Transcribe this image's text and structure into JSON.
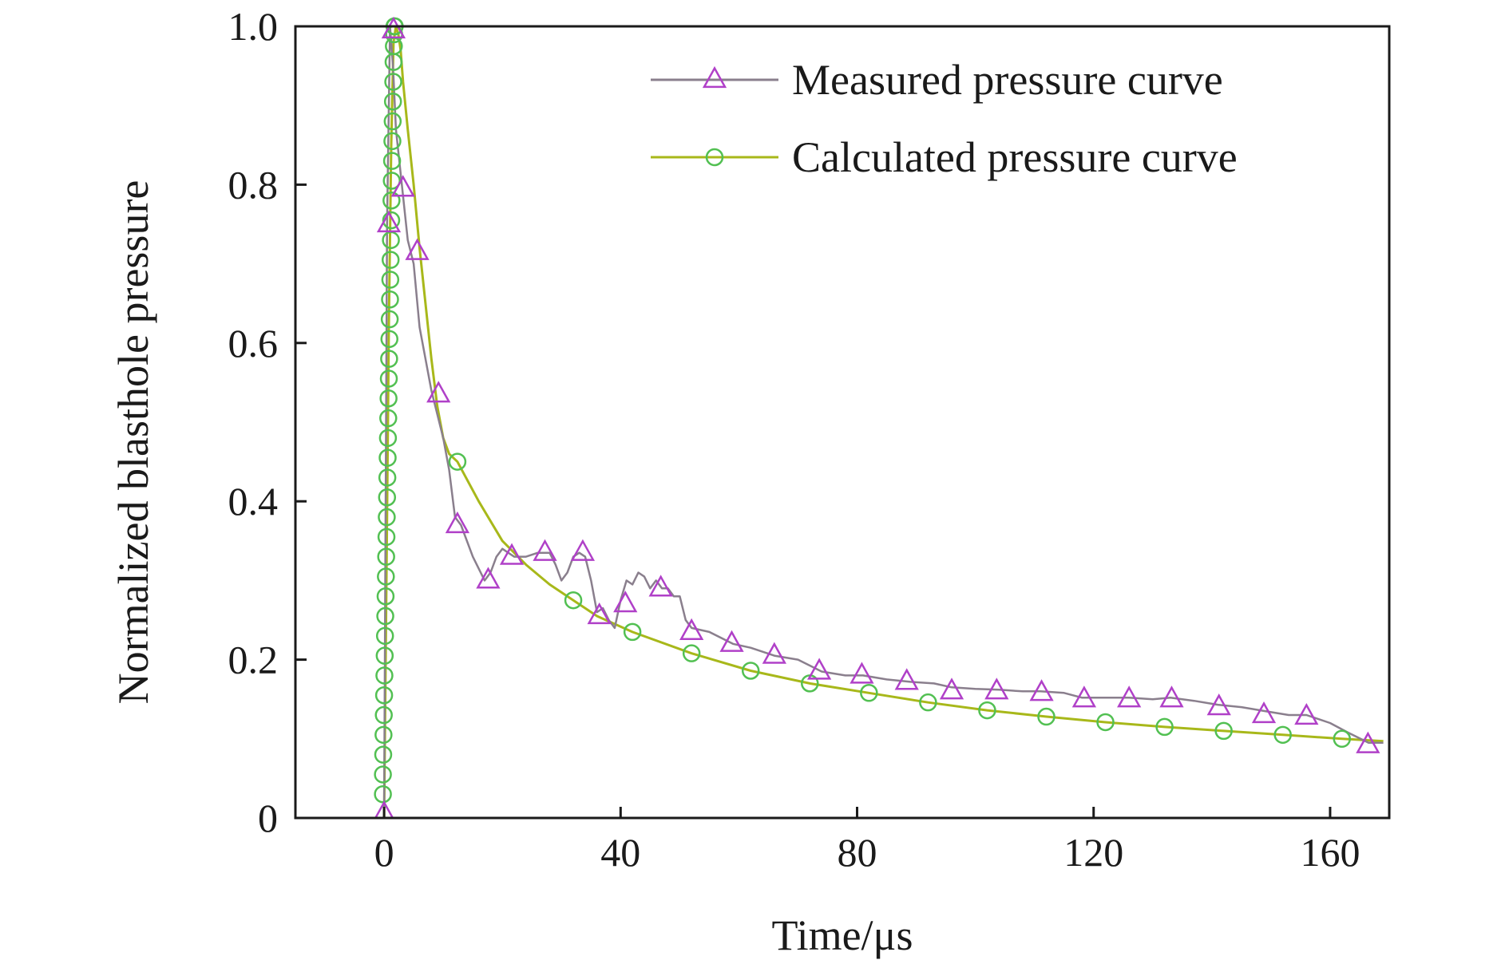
{
  "chart_data": {
    "type": "line",
    "title": "",
    "xlabel": "Time/μs",
    "ylabel": "Normalized blasthole pressure",
    "xlim": [
      -15,
      170
    ],
    "ylim": [
      0,
      1.0
    ],
    "x_ticks": [
      0,
      40,
      80,
      120,
      160
    ],
    "x_tick_labels": [
      "0",
      "40",
      "80",
      "120",
      "160"
    ],
    "y_ticks": [
      0,
      0.2,
      0.4,
      0.6,
      0.8,
      1.0
    ],
    "y_tick_labels": [
      "0",
      "0.2",
      "0.4",
      "0.6",
      "0.8",
      "1.0"
    ],
    "grid": false,
    "legend_position": "top-right",
    "series": [
      {
        "name": "Measured pressure curve",
        "line_color": "#8a7f8d",
        "marker": "triangle",
        "marker_color": "#b040c8",
        "x": [
          0,
          0.5,
          1.0,
          1.5,
          2.0,
          3.0,
          4.0,
          5.0,
          6.0,
          7.0,
          8.0,
          9.0,
          10.0,
          11.0,
          12.0,
          13.0,
          15.0,
          17.0,
          18.0,
          19.0,
          20.0,
          22.0,
          24.0,
          26.0,
          28.0,
          29.0,
          30.0,
          31.0,
          32.0,
          33.0,
          34.0,
          35.0,
          36.0,
          37.0,
          38.0,
          39.0,
          40.0,
          41.0,
          42.0,
          43.0,
          44.0,
          45.0,
          46.0,
          47.0,
          48.0,
          49.0,
          50.0,
          51.0,
          52.0,
          55.0,
          59.0,
          62.0,
          66.0,
          70.0,
          74.0,
          78.0,
          81.0,
          85.0,
          89.0,
          93.0,
          96.0,
          100.0,
          104.0,
          108.0,
          111.0,
          115.0,
          118.0,
          122.0,
          126.0,
          130.0,
          133.0,
          137.0,
          141.0,
          145.0,
          149.0,
          153.0,
          156.0,
          160.0,
          163.0,
          166.5,
          169.0
        ],
        "y": [
          0.01,
          0.75,
          1.0,
          0.95,
          0.87,
          0.8,
          0.73,
          0.7,
          0.62,
          0.58,
          0.54,
          0.51,
          0.48,
          0.44,
          0.38,
          0.37,
          0.33,
          0.3,
          0.31,
          0.33,
          0.34,
          0.33,
          0.33,
          0.335,
          0.335,
          0.32,
          0.3,
          0.31,
          0.33,
          0.335,
          0.33,
          0.3,
          0.26,
          0.265,
          0.25,
          0.24,
          0.275,
          0.3,
          0.295,
          0.31,
          0.305,
          0.29,
          0.3,
          0.29,
          0.29,
          0.28,
          0.28,
          0.25,
          0.24,
          0.235,
          0.22,
          0.215,
          0.205,
          0.2,
          0.185,
          0.18,
          0.18,
          0.175,
          0.172,
          0.17,
          0.165,
          0.163,
          0.162,
          0.16,
          0.16,
          0.158,
          0.152,
          0.152,
          0.152,
          0.15,
          0.152,
          0.148,
          0.143,
          0.14,
          0.135,
          0.13,
          0.13,
          0.12,
          0.108,
          0.095,
          0.095
        ],
        "marker_x": [
          0,
          0.8,
          1.6,
          3.2,
          5.6,
          9.2,
          12.4,
          17.6,
          21.6,
          27.2,
          33.6,
          36.4,
          40.8,
          46.8,
          52.0,
          58.8,
          66.0,
          73.6,
          80.8,
          88.4,
          96.0,
          103.6,
          111.2,
          118.4,
          126.0,
          133.2,
          141.2,
          148.8,
          156.0,
          166.4
        ],
        "marker_y": [
          0.005,
          0.75,
          0.995,
          0.795,
          0.715,
          0.535,
          0.37,
          0.3,
          0.33,
          0.335,
          0.335,
          0.255,
          0.27,
          0.29,
          0.235,
          0.22,
          0.205,
          0.185,
          0.18,
          0.172,
          0.16,
          0.16,
          0.158,
          0.15,
          0.15,
          0.15,
          0.14,
          0.13,
          0.128,
          0.092
        ]
      },
      {
        "name": "Calculated pressure curve",
        "line_color": "#a8b81a",
        "marker": "circle",
        "marker_color": "#52c052",
        "x": [
          0,
          0.4,
          0.8,
          1.2,
          1.6,
          2.0,
          2.4,
          2.8,
          3.2,
          4.0,
          5.0,
          6.0,
          7.0,
          8.0,
          9.0,
          10.0,
          11.0,
          12.4,
          16.0,
          20.0,
          24.0,
          28.0,
          32.0,
          36.0,
          42.0,
          52.0,
          62.0,
          72.0,
          82.0,
          92.0,
          102.0,
          112.0,
          122.0,
          132.0,
          142.0,
          152.0,
          162.0,
          169.0
        ],
        "y": [
          0.0,
          0.3,
          0.62,
          0.85,
          0.98,
          1.0,
          0.99,
          0.97,
          0.93,
          0.87,
          0.8,
          0.72,
          0.65,
          0.58,
          0.52,
          0.48,
          0.46,
          0.45,
          0.4,
          0.35,
          0.32,
          0.295,
          0.275,
          0.255,
          0.235,
          0.208,
          0.186,
          0.17,
          0.158,
          0.146,
          0.136,
          0.128,
          0.121,
          0.115,
          0.11,
          0.105,
          0.1,
          0.097
        ],
        "marker_x": [
          -0.2,
          -0.2,
          -0.15,
          -0.1,
          -0.05,
          0.0,
          0.05,
          0.1,
          0.15,
          0.2,
          0.25,
          0.3,
          0.35,
          0.4,
          0.45,
          0.5,
          0.55,
          0.6,
          0.65,
          0.7,
          0.75,
          0.8,
          0.85,
          0.9,
          0.95,
          1.0,
          1.05,
          1.1,
          1.15,
          1.2,
          1.25,
          1.3,
          1.35,
          1.4,
          1.45,
          1.5,
          1.55,
          1.6,
          1.65,
          1.7,
          1.75,
          1.8,
          12.4,
          32.0,
          42.0,
          52.0,
          62.0,
          72.0,
          82.0,
          92.0,
          102.0,
          112.0,
          122.0,
          132.0,
          142.0,
          152.0,
          162.0
        ],
        "marker_y": [
          0.03,
          0.055,
          0.08,
          0.105,
          0.13,
          0.155,
          0.18,
          0.205,
          0.23,
          0.255,
          0.28,
          0.305,
          0.33,
          0.355,
          0.38,
          0.405,
          0.43,
          0.455,
          0.48,
          0.505,
          0.53,
          0.555,
          0.58,
          0.605,
          0.63,
          0.655,
          0.68,
          0.705,
          0.73,
          0.755,
          0.78,
          0.805,
          0.83,
          0.855,
          0.88,
          0.905,
          0.93,
          0.955,
          0.975,
          0.99,
          1.0,
          1.0,
          0.45,
          0.275,
          0.235,
          0.208,
          0.186,
          0.17,
          0.158,
          0.146,
          0.136,
          0.128,
          0.121,
          0.115,
          0.11,
          0.105,
          0.1
        ]
      }
    ]
  }
}
